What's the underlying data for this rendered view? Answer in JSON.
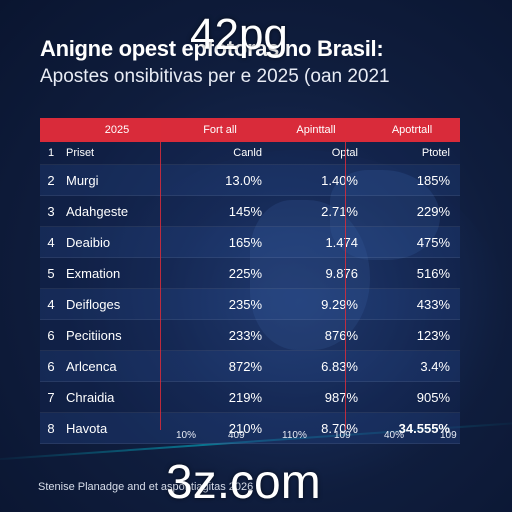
{
  "watermark_top": "42pg",
  "watermark_bottom": "3z.com",
  "title": "Anigne opest epfotoras no Brasil:",
  "subtitle": "Apostes onsibitivas per e 2025 (oan 2021",
  "table": {
    "headers": [
      "2025",
      "Fort all",
      "Apinttall",
      "Apotrtall"
    ],
    "sub_row": {
      "num": "1",
      "name": "Priset",
      "col3": "Canld",
      "col4": "Optal",
      "col5": "Ptotel"
    },
    "rows": [
      {
        "num": "2",
        "name": "Murgi",
        "col3": "13.0%",
        "col4": "1.40%",
        "col5": "185%"
      },
      {
        "num": "3",
        "name": "Adahgeste",
        "col3": "145%",
        "col4": "2.71%",
        "col5": "229%"
      },
      {
        "num": "4",
        "name": "Deaibio",
        "col3": "165%",
        "col4": "1.474",
        "col5": "475%"
      },
      {
        "num": "5",
        "name": "Exmation",
        "col3": "225%",
        "col4": "9.876",
        "col5": "516%"
      },
      {
        "num": "4",
        "name": "Deifloges",
        "col3": "235%",
        "col4": "9.29%",
        "col5": "433%"
      },
      {
        "num": "6",
        "name": "Pecitiions",
        "col3": "233%",
        "col4": "876%",
        "col5": "123%"
      },
      {
        "num": "6",
        "name": "Arlcenca",
        "col3": "872%",
        "col4": "6.83%",
        "col5": "3.4%"
      },
      {
        "num": "7",
        "name": "Chraidia",
        "col3": "219%",
        "col4": "987%",
        "col5": "905%"
      },
      {
        "num": "8",
        "name": "Havota",
        "col3": "210%",
        "col4": "8.70%",
        "col5": "34.555%"
      }
    ]
  },
  "scale_labels": [
    "10%",
    "409",
    "110%",
    "109",
    "40%",
    "109"
  ],
  "source": "Stenise Planadge and et aspontiagitas 2026",
  "colors": {
    "header_red": "#d92b3a",
    "background": "#0f1d3d"
  }
}
